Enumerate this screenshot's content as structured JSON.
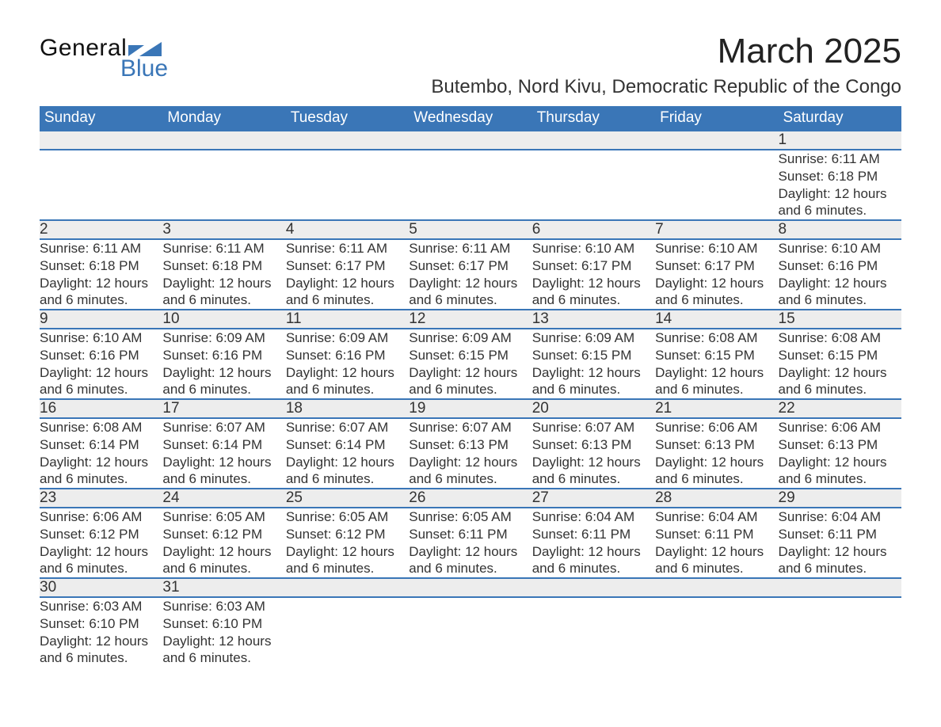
{
  "logo": {
    "word1": "General",
    "word2": "Blue",
    "brand_color": "#3a76b7",
    "text_color": "#111111"
  },
  "title": "March 2025",
  "location": "Butembo, Nord Kivu, Democratic Republic of the Congo",
  "colors": {
    "header_bg": "#3a76b7",
    "header_text": "#ffffff",
    "daynum_bg": "#ededed",
    "row_divider": "#3a76b7",
    "body_text": "#333333",
    "page_bg": "#ffffff"
  },
  "typography": {
    "title_fontsize_pt": 33,
    "location_fontsize_pt": 18,
    "header_fontsize_pt": 14,
    "body_fontsize_pt": 13,
    "font_family": "Arial"
  },
  "layout": {
    "columns": 7,
    "body_rows": 6
  },
  "weekdays": [
    "Sunday",
    "Monday",
    "Tuesday",
    "Wednesday",
    "Thursday",
    "Friday",
    "Saturday"
  ],
  "weeks": [
    [
      null,
      null,
      null,
      null,
      null,
      null,
      {
        "n": 1,
        "sunrise": "6:11 AM",
        "sunset": "6:18 PM",
        "daylight": "12 hours and 6 minutes."
      }
    ],
    [
      {
        "n": 2,
        "sunrise": "6:11 AM",
        "sunset": "6:18 PM",
        "daylight": "12 hours and 6 minutes."
      },
      {
        "n": 3,
        "sunrise": "6:11 AM",
        "sunset": "6:18 PM",
        "daylight": "12 hours and 6 minutes."
      },
      {
        "n": 4,
        "sunrise": "6:11 AM",
        "sunset": "6:17 PM",
        "daylight": "12 hours and 6 minutes."
      },
      {
        "n": 5,
        "sunrise": "6:11 AM",
        "sunset": "6:17 PM",
        "daylight": "12 hours and 6 minutes."
      },
      {
        "n": 6,
        "sunrise": "6:10 AM",
        "sunset": "6:17 PM",
        "daylight": "12 hours and 6 minutes."
      },
      {
        "n": 7,
        "sunrise": "6:10 AM",
        "sunset": "6:17 PM",
        "daylight": "12 hours and 6 minutes."
      },
      {
        "n": 8,
        "sunrise": "6:10 AM",
        "sunset": "6:16 PM",
        "daylight": "12 hours and 6 minutes."
      }
    ],
    [
      {
        "n": 9,
        "sunrise": "6:10 AM",
        "sunset": "6:16 PM",
        "daylight": "12 hours and 6 minutes."
      },
      {
        "n": 10,
        "sunrise": "6:09 AM",
        "sunset": "6:16 PM",
        "daylight": "12 hours and 6 minutes."
      },
      {
        "n": 11,
        "sunrise": "6:09 AM",
        "sunset": "6:16 PM",
        "daylight": "12 hours and 6 minutes."
      },
      {
        "n": 12,
        "sunrise": "6:09 AM",
        "sunset": "6:15 PM",
        "daylight": "12 hours and 6 minutes."
      },
      {
        "n": 13,
        "sunrise": "6:09 AM",
        "sunset": "6:15 PM",
        "daylight": "12 hours and 6 minutes."
      },
      {
        "n": 14,
        "sunrise": "6:08 AM",
        "sunset": "6:15 PM",
        "daylight": "12 hours and 6 minutes."
      },
      {
        "n": 15,
        "sunrise": "6:08 AM",
        "sunset": "6:15 PM",
        "daylight": "12 hours and 6 minutes."
      }
    ],
    [
      {
        "n": 16,
        "sunrise": "6:08 AM",
        "sunset": "6:14 PM",
        "daylight": "12 hours and 6 minutes."
      },
      {
        "n": 17,
        "sunrise": "6:07 AM",
        "sunset": "6:14 PM",
        "daylight": "12 hours and 6 minutes."
      },
      {
        "n": 18,
        "sunrise": "6:07 AM",
        "sunset": "6:14 PM",
        "daylight": "12 hours and 6 minutes."
      },
      {
        "n": 19,
        "sunrise": "6:07 AM",
        "sunset": "6:13 PM",
        "daylight": "12 hours and 6 minutes."
      },
      {
        "n": 20,
        "sunrise": "6:07 AM",
        "sunset": "6:13 PM",
        "daylight": "12 hours and 6 minutes."
      },
      {
        "n": 21,
        "sunrise": "6:06 AM",
        "sunset": "6:13 PM",
        "daylight": "12 hours and 6 minutes."
      },
      {
        "n": 22,
        "sunrise": "6:06 AM",
        "sunset": "6:13 PM",
        "daylight": "12 hours and 6 minutes."
      }
    ],
    [
      {
        "n": 23,
        "sunrise": "6:06 AM",
        "sunset": "6:12 PM",
        "daylight": "12 hours and 6 minutes."
      },
      {
        "n": 24,
        "sunrise": "6:05 AM",
        "sunset": "6:12 PM",
        "daylight": "12 hours and 6 minutes."
      },
      {
        "n": 25,
        "sunrise": "6:05 AM",
        "sunset": "6:12 PM",
        "daylight": "12 hours and 6 minutes."
      },
      {
        "n": 26,
        "sunrise": "6:05 AM",
        "sunset": "6:11 PM",
        "daylight": "12 hours and 6 minutes."
      },
      {
        "n": 27,
        "sunrise": "6:04 AM",
        "sunset": "6:11 PM",
        "daylight": "12 hours and 6 minutes."
      },
      {
        "n": 28,
        "sunrise": "6:04 AM",
        "sunset": "6:11 PM",
        "daylight": "12 hours and 6 minutes."
      },
      {
        "n": 29,
        "sunrise": "6:04 AM",
        "sunset": "6:11 PM",
        "daylight": "12 hours and 6 minutes."
      }
    ],
    [
      {
        "n": 30,
        "sunrise": "6:03 AM",
        "sunset": "6:10 PM",
        "daylight": "12 hours and 6 minutes."
      },
      {
        "n": 31,
        "sunrise": "6:03 AM",
        "sunset": "6:10 PM",
        "daylight": "12 hours and 6 minutes."
      },
      null,
      null,
      null,
      null,
      null
    ]
  ],
  "labels": {
    "sunrise": "Sunrise:",
    "sunset": "Sunset:",
    "daylight": "Daylight:"
  }
}
